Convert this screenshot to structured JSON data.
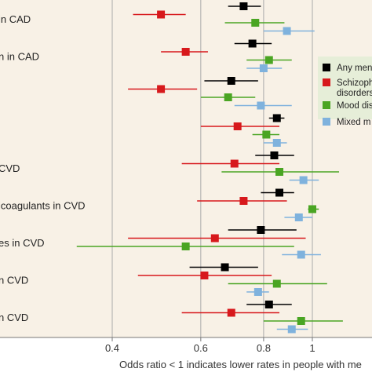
{
  "chart_data": {
    "type": "scatter",
    "subtype": "forest-plot",
    "xscale": "log",
    "xlim": [
      0.3,
      1.2
    ],
    "reference_line": 1,
    "xlabel": "Odds ratio < 1 indicates lower rates in people with me",
    "x_ticks": [
      {
        "value": 0.4,
        "label": "0.4"
      },
      {
        "value": 0.6,
        "label": "0.6"
      },
      {
        "value": 0.8,
        "label": "0.8"
      },
      {
        "value": 1,
        "label": "1"
      }
    ],
    "outcomes": [
      {
        "label": "in CAD"
      },
      {
        "label": "n in CAD"
      },
      {
        "label": ""
      },
      {
        "label": ""
      },
      {
        "label": "CVD"
      },
      {
        "label": "icoagulants in CVD"
      },
      {
        "label": "es in CVD"
      },
      {
        "label": "n CVD"
      },
      {
        "label": "n CVD"
      }
    ],
    "series": [
      {
        "name": "Any men",
        "color": "#000000"
      },
      {
        "name": "Schizoph disorders",
        "color": "#d7191c"
      },
      {
        "name": "Mood dis",
        "color": "#4aa523"
      },
      {
        "name": "Mixed m",
        "color": "#7fb2dd"
      }
    ],
    "points": [
      [
        {
          "or": 0.73,
          "lo": 0.68,
          "hi": 0.79
        },
        {
          "or": 0.5,
          "lo": 0.44,
          "hi": 0.56
        },
        {
          "or": 0.77,
          "lo": 0.67,
          "hi": 0.88
        },
        {
          "or": 0.89,
          "lo": 0.8,
          "hi": 1.01
        }
      ],
      [
        {
          "or": 0.76,
          "lo": 0.7,
          "hi": 0.83
        },
        {
          "or": 0.56,
          "lo": 0.5,
          "hi": 0.62
        },
        {
          "or": 0.82,
          "lo": 0.74,
          "hi": 0.91
        },
        {
          "or": 0.8,
          "lo": 0.74,
          "hi": 0.87
        }
      ],
      [
        {
          "or": 0.69,
          "lo": 0.61,
          "hi": 0.78
        },
        {
          "or": 0.5,
          "lo": 0.43,
          "hi": 0.59
        },
        {
          "or": 0.68,
          "lo": 0.6,
          "hi": 0.77
        },
        {
          "or": 0.79,
          "lo": 0.7,
          "hi": 0.91
        }
      ],
      [
        {
          "or": 0.85,
          "lo": 0.82,
          "hi": 0.88
        },
        {
          "or": 0.71,
          "lo": 0.6,
          "hi": 0.86
        },
        {
          "or": 0.81,
          "lo": 0.76,
          "hi": 0.86
        },
        {
          "or": 0.85,
          "lo": 0.8,
          "hi": 0.89
        }
      ],
      [
        {
          "or": 0.84,
          "lo": 0.77,
          "hi": 0.92
        },
        {
          "or": 0.7,
          "lo": 0.55,
          "hi": 0.86
        },
        {
          "or": 0.86,
          "lo": 0.66,
          "hi": 1.13
        },
        {
          "or": 0.96,
          "lo": 0.9,
          "hi": 1.03
        }
      ],
      [
        {
          "or": 0.86,
          "lo": 0.79,
          "hi": 0.92
        },
        {
          "or": 0.73,
          "lo": 0.59,
          "hi": 0.89
        },
        {
          "or": 1.0,
          "lo": 0.98,
          "hi": 1.03
        },
        {
          "or": 0.94,
          "lo": 0.88,
          "hi": 1.0
        }
      ],
      [
        {
          "or": 0.79,
          "lo": 0.68,
          "hi": 0.93
        },
        {
          "or": 0.64,
          "lo": 0.43,
          "hi": 0.97
        },
        {
          "or": 0.56,
          "lo": 0.34,
          "hi": 0.92
        },
        {
          "or": 0.95,
          "lo": 0.87,
          "hi": 1.04
        }
      ],
      [
        {
          "or": 0.67,
          "lo": 0.57,
          "hi": 0.78
        },
        {
          "or": 0.61,
          "lo": 0.45,
          "hi": 0.83
        },
        {
          "or": 0.85,
          "lo": 0.68,
          "hi": 1.07
        },
        {
          "or": 0.78,
          "lo": 0.74,
          "hi": 0.82
        }
      ],
      [
        {
          "or": 0.82,
          "lo": 0.74,
          "hi": 0.91
        },
        {
          "or": 0.69,
          "lo": 0.55,
          "hi": 0.86
        },
        {
          "or": 0.95,
          "lo": 0.8,
          "hi": 1.15
        },
        {
          "or": 0.91,
          "lo": 0.85,
          "hi": 0.98
        }
      ]
    ],
    "legend_position": "right",
    "colors": {
      "panel_background": "#f8f1e6",
      "gridline": "#aaaaaa",
      "legend_background": "#e6eed8",
      "axis_text": "#333333"
    }
  }
}
